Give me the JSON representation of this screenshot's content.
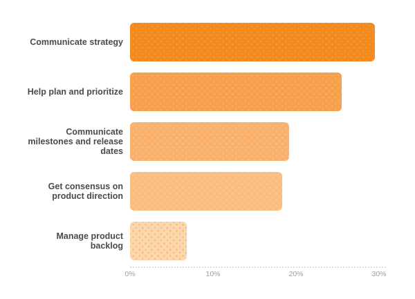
{
  "chart_data": {
    "type": "bar",
    "orientation": "horizontal",
    "title": "",
    "categories": [
      "Communicate strategy",
      "Help plan and prioritize",
      "Communicate milestones and release dates",
      "Get consensus on product direction",
      "Manage product backlog"
    ],
    "label_lines": [
      [
        "Communicate strategy"
      ],
      [
        "Help plan and prioritize"
      ],
      [
        "Communicate",
        "milestones and release",
        "dates"
      ],
      [
        "Get consensus on",
        "product direction"
      ],
      [
        "Manage product",
        "backlog"
      ]
    ],
    "values": [
      29.5,
      25.5,
      19.2,
      18.3,
      6.8
    ],
    "value_unit": "%",
    "xlabel": "",
    "ylabel": "",
    "xlim": [
      0,
      30.8
    ],
    "x_ticks": [
      "0%",
      "10%",
      "20%",
      "30%"
    ],
    "x_tick_values": [
      0,
      10,
      20,
      30
    ],
    "grid": false,
    "legend": false,
    "bar_colors": [
      "#F28A1D",
      "#F7A14D",
      "#F9B16C",
      "#FABD82",
      "#FCD7AB"
    ],
    "bar_dot_colors": [
      "#F6993B",
      "#F9AE63",
      "#FBBF82",
      "#FBC996",
      "#F5BC85"
    ],
    "label_color": "#4A4A4A",
    "tick_label_color": "#9E9E9E",
    "axis_line_color": "#E7DAC4",
    "background": "#FFFFFF"
  }
}
